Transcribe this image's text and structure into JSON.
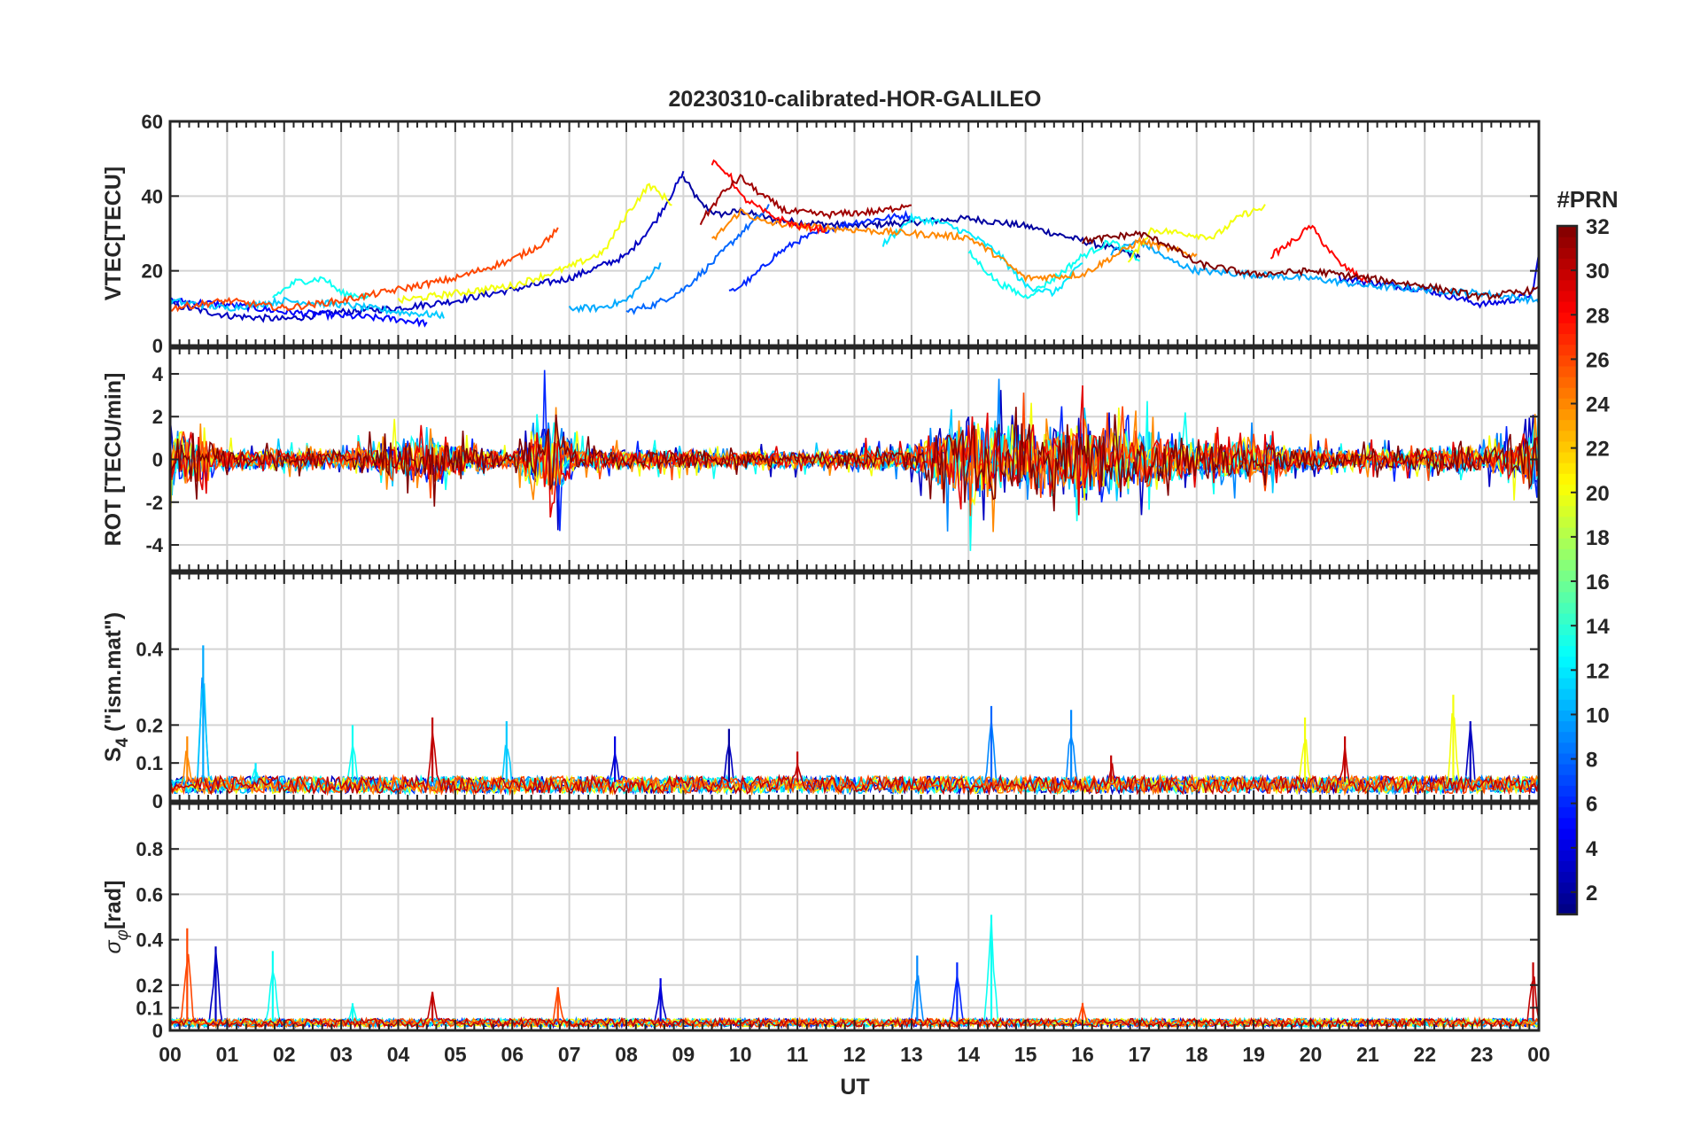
{
  "chart_data": {
    "type": "line",
    "title": "20230310-calibrated-HOR-GALILEO",
    "xlabel": "UT",
    "x_ticks": [
      "00",
      "01",
      "02",
      "03",
      "04",
      "05",
      "06",
      "07",
      "08",
      "09",
      "10",
      "11",
      "12",
      "13",
      "14",
      "15",
      "16",
      "17",
      "18",
      "19",
      "20",
      "21",
      "22",
      "23",
      "00"
    ],
    "xlim_hours": [
      0,
      24
    ],
    "colorbar": {
      "label": "#PRN",
      "range": [
        1,
        32
      ],
      "ticks": [
        "2",
        "4",
        "6",
        "8",
        "10",
        "12",
        "14",
        "16",
        "18",
        "20",
        "22",
        "24",
        "26",
        "28",
        "30",
        "32"
      ],
      "colormap": "jet"
    },
    "panels": [
      {
        "id": "vtec",
        "ylabel": "VTEC[TECU]",
        "ylim": [
          0,
          60
        ],
        "yticks": [
          "0",
          "20",
          "40",
          "60"
        ],
        "ytick_values": [
          0,
          20,
          40,
          60
        ],
        "grid_values": [
          0,
          20,
          40,
          60
        ],
        "series": [
          {
            "prn": 2,
            "x": [
              9.0,
              9.3,
              9.6,
              10.0,
              10.5,
              11.0,
              12.0,
              13.0,
              14.0,
              15.0,
              16.0,
              17.0
            ],
            "y": [
              45,
              38,
              35,
              36,
              34,
              33,
              32,
              33,
              34,
              32,
              28,
              24
            ]
          },
          {
            "prn": 3,
            "x": [
              0.0,
              1.0,
              2.0,
              3.0,
              4.0,
              5.0,
              6.0,
              7.0,
              8.0,
              8.5,
              9.0
            ],
            "y": [
              11,
              8,
              7,
              9,
              10,
              12,
              15,
              18,
              24,
              33,
              46
            ]
          },
          {
            "prn": 5,
            "x": [
              0.0,
              1.0,
              2.0,
              3.0,
              4.0,
              4.5
            ],
            "y": [
              12,
              11,
              9,
              8,
              7,
              6
            ]
          },
          {
            "prn": 6,
            "x": [
              9.8,
              10.2,
              10.6,
              11.0,
              11.5,
              12.0,
              13.0
            ],
            "y": [
              14,
              18,
              24,
              28,
              31,
              33,
              35
            ]
          },
          {
            "prn": 4,
            "x": [
              20.5,
              21.0,
              22.0,
              23.0,
              23.5,
              23.9,
              24.0
            ],
            "y": [
              18,
              17,
              15,
              11,
              12,
              14,
              25
            ]
          },
          {
            "prn": 8,
            "x": [
              8.0,
              8.5,
              9.0,
              9.5,
              10.0,
              10.5
            ],
            "y": [
              9,
              11,
              15,
              22,
              30,
              37
            ]
          },
          {
            "prn": 10,
            "x": [
              7.0,
              7.5,
              8.0,
              8.6
            ],
            "y": [
              10,
              10,
              12,
              22
            ]
          },
          {
            "prn": 10,
            "x": [
              16.5,
              17.0,
              17.5,
              18.0,
              19.0,
              20.0,
              21.0,
              22.0,
              23.0,
              24.0
            ],
            "y": [
              25,
              28,
              23,
              20,
              19,
              18,
              16,
              15,
              14,
              12
            ]
          },
          {
            "prn": 11,
            "x": [
              0.0,
              1.0,
              2.0,
              3.0,
              4.0,
              4.8
            ],
            "y": [
              12,
              10,
              12,
              11,
              9,
              8
            ]
          },
          {
            "prn": 12,
            "x": [
              12.5,
              13.0,
              13.5,
              14.0,
              14.5,
              15.0,
              15.5,
              16.0
            ],
            "y": [
              27,
              34,
              33,
              30,
              25,
              16,
              14,
              22
            ]
          },
          {
            "prn": 13,
            "x": [
              1.8,
              2.2,
              2.7,
              3.0,
              3.5
            ],
            "y": [
              13,
              17,
              18,
              14,
              13
            ]
          },
          {
            "prn": 13,
            "x": [
              14.0,
              14.5,
              15.0,
              15.5,
              16.0,
              16.5,
              17.0
            ],
            "y": [
              25,
              17,
              13,
              18,
              24,
              28,
              23
            ]
          },
          {
            "prn": 20,
            "x": [
              4.0,
              5.0,
              6.0,
              7.0,
              7.6,
              8.0,
              8.4,
              8.8
            ],
            "y": [
              12,
              14,
              16,
              21,
              25,
              35,
              43,
              38
            ]
          },
          {
            "prn": 20,
            "x": [
              16.8,
              17.2,
              17.8,
              18.3,
              18.8,
              19.2
            ],
            "y": [
              22,
              31,
              30,
              29,
              35,
              37
            ]
          },
          {
            "prn": 24,
            "x": [
              9.5,
              10.0,
              10.4,
              11.0,
              12.0,
              13.0,
              14.0,
              14.5,
              15.0,
              16.0,
              17.0,
              18.0
            ],
            "y": [
              28,
              36,
              33,
              32,
              31,
              30,
              29,
              24,
              18,
              19,
              28,
              24
            ]
          },
          {
            "prn": 26,
            "x": [
              0.0,
              1.0,
              2.0,
              3.0,
              4.0,
              5.0,
              6.0,
              6.5,
              6.8
            ],
            "y": [
              10,
              12,
              10,
              12,
              15,
              18,
              23,
              27,
              31
            ]
          },
          {
            "prn": 28,
            "x": [
              9.5,
              9.8,
              10.0,
              10.5,
              11.0,
              11.5
            ],
            "y": [
              49,
              46,
              40,
              35,
              32,
              31
            ]
          },
          {
            "prn": 28,
            "x": [
              19.3,
              19.7,
              20.0,
              20.5,
              21.0
            ],
            "y": [
              24,
              28,
              32,
              22,
              17
            ]
          },
          {
            "prn": 31,
            "x": [
              9.3,
              9.7,
              10.0,
              10.4,
              10.8,
              11.5,
              12.5,
              13.0
            ],
            "y": [
              33,
              41,
              45,
              40,
              36,
              35,
              36,
              38
            ]
          },
          {
            "prn": 32,
            "x": [
              16.0,
              16.5,
              17.0,
              17.5,
              18.0,
              19.0,
              20.0,
              21.0,
              22.0,
              23.0,
              24.0
            ],
            "y": [
              28,
              29,
              30,
              27,
              22,
              19,
              20,
              18,
              16,
              13,
              15
            ]
          }
        ]
      },
      {
        "id": "rot",
        "ylabel": "ROT [TECU/min]",
        "ylim": [
          -5.2,
          5.2
        ],
        "yticks": [
          "-4",
          "-2",
          "0",
          "2",
          "4"
        ],
        "ytick_values": [
          -4,
          -2,
          0,
          2,
          4
        ],
        "grid_values": [
          -4,
          -2,
          0,
          2,
          4
        ],
        "activity_profile": {
          "hours": [
            0,
            0.5,
            1,
            3,
            4.5,
            6,
            6.7,
            7.2,
            8,
            10,
            12,
            13,
            13.5,
            14,
            15,
            16,
            17,
            18,
            19,
            20,
            21,
            22,
            23,
            23.7,
            24
          ],
          "amplitude": [
            3.0,
            2.0,
            1.0,
            0.8,
            2.0,
            0.6,
            4.0,
            1.0,
            0.9,
            0.7,
            0.8,
            1.0,
            2.5,
            3.8,
            3.0,
            3.5,
            2.5,
            1.8,
            1.6,
            1.0,
            0.8,
            1.0,
            1.2,
            1.8,
            4.0
          ]
        }
      },
      {
        "id": "s4",
        "ylabel": "S4 (\"ism.mat\")",
        "ylabel_main": "S",
        "ylabel_sub": "4",
        "ylabel_rest": " (\"ism.mat\")",
        "ylim": [
          0,
          0.6
        ],
        "yticks": [
          "0",
          "0.1",
          "0.2",
          "0.4"
        ],
        "ytick_values": [
          0,
          0.1,
          0.2,
          0.4
        ],
        "grid_values": [
          0.1,
          0.2,
          0.4
        ],
        "peaks": [
          {
            "x": 0.58,
            "y": 0.41,
            "prn": 10
          },
          {
            "x": 0.3,
            "y": 0.17,
            "prn": 24
          },
          {
            "x": 1.5,
            "y": 0.1,
            "prn": 12
          },
          {
            "x": 3.2,
            "y": 0.2,
            "prn": 13
          },
          {
            "x": 4.6,
            "y": 0.22,
            "prn": 30
          },
          {
            "x": 5.9,
            "y": 0.21,
            "prn": 11
          },
          {
            "x": 7.8,
            "y": 0.17,
            "prn": 4
          },
          {
            "x": 9.8,
            "y": 0.19,
            "prn": 2
          },
          {
            "x": 11.0,
            "y": 0.13,
            "prn": 30
          },
          {
            "x": 14.4,
            "y": 0.25,
            "prn": 8
          },
          {
            "x": 15.8,
            "y": 0.24,
            "prn": 9
          },
          {
            "x": 16.5,
            "y": 0.12,
            "prn": 30
          },
          {
            "x": 19.9,
            "y": 0.22,
            "prn": 20
          },
          {
            "x": 20.6,
            "y": 0.17,
            "prn": 30
          },
          {
            "x": 22.5,
            "y": 0.28,
            "prn": 20
          },
          {
            "x": 22.8,
            "y": 0.21,
            "prn": 3
          }
        ]
      },
      {
        "id": "sigma",
        "ylabel": "σφ[rad]",
        "ylabel_main": "σ",
        "ylabel_sub": "φ",
        "ylabel_rest": "[rad]",
        "ylim": [
          0,
          1.0
        ],
        "yticks": [
          "0",
          "0.1",
          "0.2",
          "0.4",
          "0.6",
          "0.8"
        ],
        "ytick_values": [
          0,
          0.1,
          0.2,
          0.4,
          0.6,
          0.8
        ],
        "grid_values": [
          0.1,
          0.2,
          0.4,
          0.6,
          0.8
        ],
        "peaks": [
          {
            "x": 0.3,
            "y": 0.45,
            "prn": 26
          },
          {
            "x": 0.8,
            "y": 0.37,
            "prn": 3
          },
          {
            "x": 1.8,
            "y": 0.35,
            "prn": 13
          },
          {
            "x": 3.2,
            "y": 0.12,
            "prn": 13
          },
          {
            "x": 4.6,
            "y": 0.17,
            "prn": 30
          },
          {
            "x": 6.8,
            "y": 0.19,
            "prn": 26
          },
          {
            "x": 8.6,
            "y": 0.23,
            "prn": 4
          },
          {
            "x": 13.1,
            "y": 0.33,
            "prn": 9
          },
          {
            "x": 13.8,
            "y": 0.3,
            "prn": 6
          },
          {
            "x": 14.4,
            "y": 0.51,
            "prn": 13
          },
          {
            "x": 16.0,
            "y": 0.12,
            "prn": 26
          },
          {
            "x": 23.9,
            "y": 0.3,
            "prn": 30
          }
        ]
      }
    ]
  }
}
